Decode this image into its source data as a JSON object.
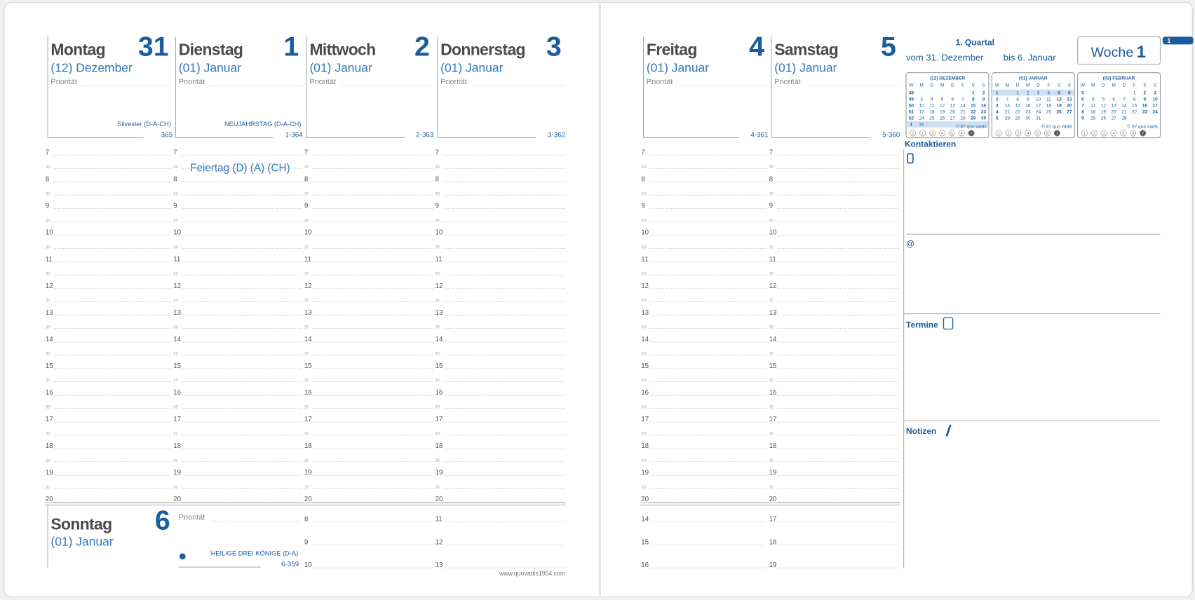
{
  "days": [
    {
      "name": "Montag",
      "number": 31,
      "month": "(12) Dezember",
      "priority": "Priorität",
      "holiday": "Silvester (D-A-CH)",
      "count": "365"
    },
    {
      "name": "Dienstag",
      "number": 1,
      "month": "(01) Januar",
      "priority": "Priorität",
      "holiday": "NEUJAHRSTAG (D-A-CH)",
      "count": "1-364",
      "note": "Feiertag (D) (A) (CH)"
    },
    {
      "name": "Mittwoch",
      "number": 2,
      "month": "(01) Januar",
      "priority": "Priorität",
      "count": "2-363"
    },
    {
      "name": "Donnerstag",
      "number": 3,
      "month": "(01) Januar",
      "priority": "Priorität",
      "count": "3-362"
    },
    {
      "name": "Freitag",
      "number": 4,
      "month": "(01) Januar",
      "priority": "Priorität",
      "count": "4-361"
    },
    {
      "name": "Samstag",
      "number": 5,
      "month": "(01) Januar",
      "priority": "Priorität",
      "count": "5-360"
    },
    {
      "name": "Sonntag",
      "number": 6,
      "month": "(01) Januar",
      "priority": "Priorität",
      "holiday": "HEILIGE DREI KÖNIGE (D-A)",
      "count": "6-359"
    }
  ],
  "hours": [
    7,
    8,
    9,
    10,
    11,
    12,
    13,
    14,
    15,
    16,
    17,
    18,
    19,
    20
  ],
  "half": "30",
  "sunday_hours": [
    [
      8,
      9,
      10
    ],
    [
      11,
      12,
      13
    ]
  ],
  "right_extra_hours": [
    [
      14,
      15,
      16
    ],
    [
      17,
      18,
      19
    ]
  ],
  "summary": {
    "quarter": "1. Quartal",
    "from": "vom 31. Dezember",
    "to": "bis 6. Januar",
    "week_label": "Woche",
    "week": 1,
    "tab": "1"
  },
  "weekday_header": [
    "W",
    "M",
    "D",
    "M",
    "D",
    "F",
    "S",
    "S"
  ],
  "mini_calendars": [
    {
      "title": "(12) DEZEMBER",
      "weeks": [
        {
          "week": 48,
          "days": [
            null,
            null,
            null,
            null,
            null,
            1,
            2
          ]
        },
        {
          "week": 49,
          "days": [
            3,
            4,
            5,
            6,
            7,
            8,
            9
          ]
        },
        {
          "week": 50,
          "days": [
            10,
            11,
            12,
            13,
            14,
            15,
            16
          ]
        },
        {
          "week": 51,
          "days": [
            17,
            18,
            19,
            20,
            21,
            22,
            23
          ]
        },
        {
          "week": 52,
          "days": [
            24,
            25,
            26,
            27,
            28,
            29,
            30
          ]
        },
        {
          "week": 1,
          "days": [
            31
          ]
        }
      ]
    },
    {
      "title": "(01) JANUAR",
      "weeks": [
        {
          "week": 1,
          "days": [
            null,
            1,
            2,
            3,
            4,
            5,
            6
          ]
        },
        {
          "week": 2,
          "days": [
            7,
            8,
            9,
            10,
            11,
            12,
            13
          ]
        },
        {
          "week": 3,
          "days": [
            14,
            15,
            16,
            17,
            18,
            19,
            20
          ]
        },
        {
          "week": 4,
          "days": [
            21,
            22,
            23,
            24,
            25,
            26,
            27
          ]
        },
        {
          "week": 5,
          "days": [
            28,
            29,
            30,
            31
          ]
        }
      ]
    },
    {
      "title": "(02) FEBRUAR",
      "weeks": [
        {
          "week": 5,
          "days": [
            null,
            null,
            null,
            null,
            1,
            2,
            3
          ]
        },
        {
          "week": 6,
          "days": [
            4,
            5,
            6,
            7,
            8,
            9,
            10
          ]
        },
        {
          "week": 7,
          "days": [
            11,
            12,
            13,
            14,
            15,
            16,
            17
          ]
        },
        {
          "week": 8,
          "days": [
            18,
            19,
            20,
            21,
            22,
            23,
            24
          ]
        },
        {
          "week": 9,
          "days": [
            25,
            26,
            27,
            28
          ]
        }
      ]
    }
  ],
  "copyright": "© 87 quo vadis",
  "circles": [
    1,
    2,
    3,
    4,
    5,
    6,
    7
  ],
  "sections": {
    "contact": "Kontaktieren",
    "email": "@",
    "appointments": "Termine",
    "notes": "Notizen"
  },
  "footer": "www.quovadis1954.com"
}
